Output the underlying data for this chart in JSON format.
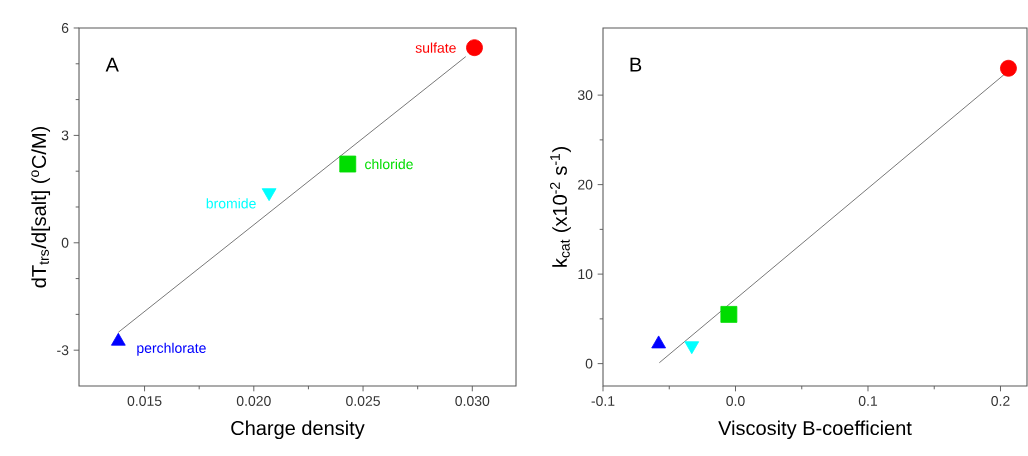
{
  "chart_data": [
    {
      "type": "scatter",
      "title": "A",
      "xlabel": "Charge density",
      "ylabel": "dT$_{trs}$/d[salt] ($^{o}$C/M)",
      "xlim": [
        0.012,
        0.032
      ],
      "xticks": [
        {
          "value": 0.015,
          "label": "0.015"
        },
        {
          "value": 0.02,
          "label": "0.020"
        },
        {
          "value": 0.025,
          "label": "0.025"
        },
        {
          "value": 0.03,
          "label": "0.030"
        }
      ],
      "ylim": [
        -4,
        6
      ],
      "yticks": [
        -3,
        0,
        3,
        6
      ],
      "series": [
        {
          "name": "perchlorate",
          "color": "#0000ff",
          "marker": "triangle",
          "x": [
            0.0138
          ],
          "values": [
            -2.75
          ]
        },
        {
          "name": "bromide",
          "color": "#00ffff",
          "marker": "triangle",
          "x": [
            0.0207
          ],
          "values": [
            1.4
          ]
        },
        {
          "name": "chloride",
          "color": "#00dd00",
          "marker": "square",
          "x": [
            0.0243
          ],
          "values": [
            2.2
          ]
        },
        {
          "name": "sulfate",
          "color": "#ff0000",
          "marker": "circle",
          "x": [
            0.0301
          ],
          "values": [
            5.45
          ]
        },
        {
          "type": "line",
          "color": "#555555",
          "marker": "none",
          "x": [
            0.0138,
            0.0297
          ],
          "values": [
            -2.5,
            5.2
          ]
        }
      ]
    },
    {
      "type": "scatter",
      "title": "B",
      "xlabel": "Viscosity B-coefficient",
      "ylabel": "k$_{cat}$ (x10$^{-2}$ s$^{-1}$)",
      "xlim": [
        -0.1,
        0.22
      ],
      "xticks": [
        -0.1,
        {
          "value": 0.0,
          "label": "0.0"
        },
        0.1,
        0.2
      ],
      "ylim": [
        -2.5,
        37.5
      ],
      "yticks": [
        0,
        10,
        20,
        30
      ],
      "series": [
        {
          "color": "#0000ff",
          "marker": "triangle",
          "x": [
            -0.058
          ],
          "values": [
            2.2
          ]
        },
        {
          "color": "#00ffff",
          "marker": "triangle",
          "x": [
            -0.033
          ],
          "values": [
            2
          ]
        },
        {
          "color": "#00dd00",
          "marker": "square",
          "x": [
            -0.005
          ],
          "values": [
            5.5
          ]
        },
        {
          "color": "#ff0000",
          "marker": "circle",
          "x": [
            0.206
          ],
          "values": [
            33
          ]
        },
        {
          "type": "line",
          "color": "#555555",
          "marker": "none",
          "x": [
            -0.0575,
            0.206
          ],
          "values": [
            0.1,
            32.7
          ]
        }
      ]
    }
  ]
}
